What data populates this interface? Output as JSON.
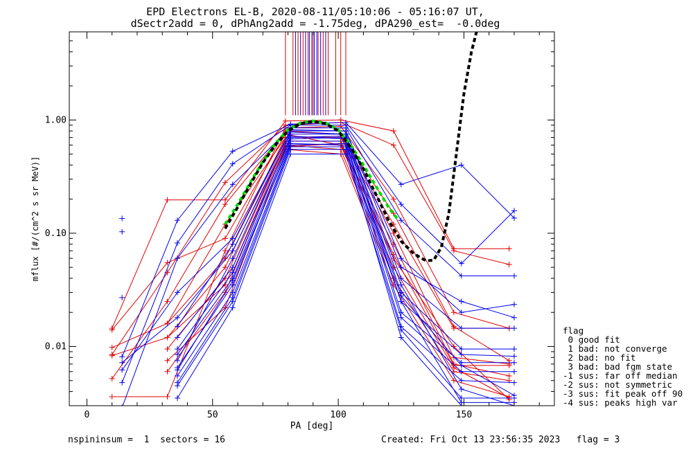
{
  "title": {
    "line1": "EPD Electrons EL-B, 2020-08-11/05:10:06 - 05:16:07 UT,",
    "line2": "dSectr2add = 0, dPhAng2add = -1.75deg, dPA290_est=  -0.0deg"
  },
  "legend": {
    "heading": "flag",
    "items": [
      " 0 good fit",
      " 1 bad: not converge",
      " 2 bad: no fit",
      " 3 bad: bad fgm state",
      "-1 sus: far off median",
      "-2 sus: not symmetric",
      "-3 sus: fit peak off 90",
      "-4 sus: peaks high var"
    ]
  },
  "footer": {
    "left": "nspininsum =  1  sectors = 16",
    "right": "Created: Fri Oct 13 23:56:35 2023   flag = 3"
  },
  "colors": {
    "red": "#e00000",
    "blue": "#0000ee",
    "green": "#00dd00",
    "black": "#000000"
  },
  "chart_data": {
    "type": "line",
    "xlabel": "PA [deg]",
    "ylabel": "mflux [#/(cm^2 s sr MeV)]",
    "xlim": [
      -7,
      186
    ],
    "ylim": [
      0.003,
      6.0
    ],
    "ylog": true,
    "xticks": [
      0,
      50,
      100,
      150
    ],
    "yticks": [
      {
        "value": 0.01,
        "label": "0.01"
      },
      {
        "value": 0.1,
        "label": "0.10"
      },
      {
        "value": 1.0,
        "label": "1.00"
      }
    ],
    "vertical_markers": {
      "y_bottom": 1.1,
      "red_x": [
        79,
        82,
        84,
        86,
        88,
        90,
        92,
        94,
        96,
        99,
        101,
        103
      ],
      "blue_x": [
        83,
        85,
        87,
        88.5,
        89.5,
        90.5,
        91.5,
        93,
        95
      ]
    },
    "red_series": [
      {
        "x": [
          10,
          32,
          55,
          79,
          101,
          122,
          146,
          168
        ],
        "values": [
          0.0145,
          0.197,
          0.197,
          0.98,
          1.0,
          0.8,
          0.073,
          0.073
        ]
      },
      {
        "x": [
          10,
          32,
          55,
          79,
          101,
          122,
          146,
          168
        ],
        "values": [
          0.0085,
          0.045,
          0.28,
          0.9,
          0.95,
          0.6,
          0.07,
          0.053
        ]
      },
      {
        "x": [
          10,
          32,
          55,
          79,
          101,
          122,
          146,
          168
        ],
        "values": [
          0.0036,
          0.0036,
          0.07,
          0.85,
          0.88,
          0.2,
          0.02,
          0.0145
        ]
      },
      {
        "x": [
          10,
          32,
          55,
          79,
          101,
          122,
          146,
          168
        ],
        "values": [
          0.0052,
          0.025,
          0.18,
          0.8,
          0.75,
          0.15,
          0.015,
          0.0075
        ]
      },
      {
        "x": [
          10,
          32,
          55,
          79,
          101,
          122,
          146,
          168
        ],
        "values": [
          0.0098,
          0.016,
          0.12,
          0.7,
          0.7,
          0.1,
          0.008,
          0.007
        ]
      },
      {
        "x": [
          10,
          32,
          55,
          79,
          101,
          122,
          146,
          168
        ],
        "values": [
          0.014,
          0.055,
          0.09,
          0.75,
          0.6,
          0.08,
          0.007,
          0.0055
        ]
      },
      {
        "x": [
          10,
          32,
          55,
          79,
          101,
          122,
          146,
          168
        ],
        "values": [
          0.0083,
          0.012,
          0.05,
          0.65,
          0.65,
          0.06,
          0.01,
          0.0034
        ]
      },
      {
        "x": [
          32,
          55,
          79,
          101,
          122,
          146,
          168
        ],
        "values": [
          0.012,
          0.035,
          0.6,
          0.55,
          0.04,
          0.006,
          0.005
        ]
      },
      {
        "x": [
          32,
          55,
          79,
          101,
          122,
          146,
          168
        ],
        "values": [
          0.0095,
          0.04,
          0.62,
          0.6,
          0.05,
          0.0065,
          0.0035
        ]
      },
      {
        "x": [
          32,
          55,
          79,
          101,
          122,
          146,
          168
        ],
        "values": [
          0.0075,
          0.022,
          0.55,
          0.5,
          0.035,
          0.005,
          0.0036
        ]
      },
      {
        "x": [
          32,
          55,
          79,
          101,
          122,
          146,
          168
        ],
        "values": [
          0.016,
          0.06,
          0.7,
          0.72,
          0.12,
          0.0145,
          0.0145
        ]
      },
      {
        "x": [
          32,
          55,
          79,
          101,
          122,
          146,
          168
        ],
        "values": [
          0.006,
          0.03,
          0.58,
          0.62,
          0.065,
          0.0068,
          0.0068
        ]
      }
    ],
    "blue_series": [
      {
        "x": [
          14,
          36,
          58,
          81,
          103,
          125,
          149,
          170
        ],
        "values": [
          0.0081,
          0.13,
          0.53,
          0.92,
          0.95,
          0.27,
          0.4,
          0.136
        ]
      },
      {
        "x": [
          14,
          36,
          58,
          81,
          103,
          125,
          149,
          170
        ],
        "values": [
          0.0048,
          0.082,
          0.41,
          0.9,
          0.9,
          0.18,
          0.054,
          0.158
        ]
      },
      {
        "x": [
          14,
          36,
          58,
          81,
          103,
          125,
          149,
          170
        ],
        "values": [
          0.0029,
          0.06,
          0.27,
          0.85,
          0.85,
          0.13,
          0.042,
          0.042
        ]
      },
      {
        "x": [
          14,
          36,
          58,
          81,
          103,
          125,
          149,
          170
        ],
        "values": [
          0.0062,
          0.03,
          0.09,
          0.8,
          0.8,
          0.05,
          0.025,
          0.018
        ]
      },
      {
        "x": [
          14,
          36,
          58,
          81,
          103,
          125,
          149,
          170
        ],
        "values": [
          0.0072,
          0.018,
          0.07,
          0.75,
          0.75,
          0.04,
          0.0145,
          0.0145
        ]
      },
      {
        "x": [
          36,
          58,
          81,
          103,
          125,
          149,
          170
        ],
        "values": [
          0.012,
          0.05,
          0.7,
          0.72,
          0.03,
          0.0095,
          0.0095
        ]
      },
      {
        "x": [
          36,
          58,
          81,
          103,
          125,
          149,
          170
        ],
        "values": [
          0.0085,
          0.04,
          0.68,
          0.7,
          0.025,
          0.0085,
          0.0082
        ]
      },
      {
        "x": [
          36,
          58,
          81,
          103,
          125,
          149,
          170
        ],
        "values": [
          0.0065,
          0.035,
          0.65,
          0.65,
          0.02,
          0.0072,
          0.0072
        ]
      },
      {
        "x": [
          36,
          58,
          81,
          103,
          125,
          149,
          170
        ],
        "values": [
          0.0055,
          0.03,
          0.6,
          0.62,
          0.018,
          0.006,
          0.006
        ]
      },
      {
        "x": [
          36,
          58,
          81,
          103,
          125,
          149,
          170
        ],
        "values": [
          0.0048,
          0.027,
          0.58,
          0.58,
          0.015,
          0.005,
          0.0048
        ]
      },
      {
        "x": [
          36,
          58,
          81,
          103,
          125,
          149,
          170
        ],
        "values": [
          0.0095,
          0.045,
          0.72,
          0.68,
          0.028,
          0.0068,
          0.0037
        ]
      },
      {
        "x": [
          36,
          58,
          81,
          103,
          125,
          149,
          170
        ],
        "values": [
          0.0075,
          0.06,
          0.78,
          0.75,
          0.035,
          0.0042,
          0.003
        ]
      },
      {
        "x": [
          36,
          58,
          81,
          103,
          125,
          149,
          170
        ],
        "values": [
          0.0062,
          0.038,
          0.62,
          0.6,
          0.025,
          0.0032,
          0.0032
        ]
      },
      {
        "x": [
          36,
          58,
          81,
          103,
          125,
          149,
          170
        ],
        "values": [
          0.0045,
          0.025,
          0.55,
          0.55,
          0.012,
          0.003,
          0.003
        ]
      },
      {
        "x": [
          36,
          58,
          81,
          103,
          125,
          149,
          170
        ],
        "values": [
          0.015,
          0.08,
          0.82,
          0.8,
          0.06,
          0.02,
          0.0235
        ]
      },
      {
        "x": [
          36,
          58,
          81,
          103,
          125,
          149,
          170
        ],
        "values": [
          0.0035,
          0.022,
          0.5,
          0.5,
          0.014,
          0.0035,
          0.0035
        ]
      }
    ],
    "extra_points": [
      {
        "x": 14,
        "y": 0.135,
        "color": "blue"
      },
      {
        "x": 14,
        "y": 0.103,
        "color": "blue"
      },
      {
        "x": 14,
        "y": 0.027,
        "color": "blue"
      }
    ],
    "fit_curves": [
      {
        "name": "",
        "style": "dashed",
        "color": "green",
        "x": [
          55,
          60,
          65,
          70,
          75,
          80,
          85,
          90,
          95,
          100,
          105,
          110,
          115,
          120,
          124
        ],
        "values": [
          0.12,
          0.18,
          0.28,
          0.43,
          0.62,
          0.82,
          0.94,
          0.98,
          0.94,
          0.82,
          0.6,
          0.4,
          0.26,
          0.17,
          0.13
        ]
      },
      {
        "name": "",
        "style": "dashed",
        "color": "black",
        "x": [
          55,
          60,
          65,
          70,
          75,
          80,
          85,
          90,
          95,
          100,
          105,
          110,
          115,
          120,
          125,
          130,
          135,
          138,
          141,
          144,
          147,
          150,
          153,
          155
        ],
        "values": [
          0.11,
          0.17,
          0.27,
          0.42,
          0.6,
          0.8,
          0.93,
          0.97,
          0.93,
          0.8,
          0.57,
          0.37,
          0.22,
          0.13,
          0.085,
          0.066,
          0.057,
          0.058,
          0.075,
          0.15,
          0.5,
          1.7,
          4.0,
          6.0
        ]
      }
    ]
  }
}
